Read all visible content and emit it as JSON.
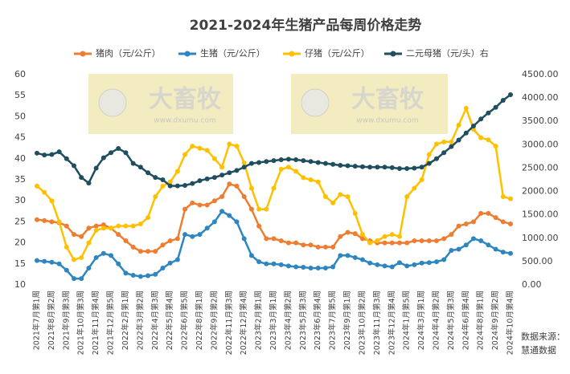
{
  "chart_data": {
    "type": "line",
    "title": "2021-2024年生猪产品每周价格走势",
    "watermark": "大畜牧",
    "watermark_url": "www.dxumu.com",
    "source_lines": [
      "数据来源：",
      "慧通数据"
    ],
    "categories": [
      "2021年7月第1周",
      null,
      "2021年8月第2周",
      null,
      "2021年9月第3周",
      null,
      "2021年10月第3周",
      null,
      "2021年11月第4周",
      null,
      "2021年12月第5周",
      null,
      "2022年2月第1周",
      null,
      "2022年3月第2周",
      null,
      "2022年4月第3周",
      null,
      "2022年5月第4周",
      null,
      "2022年6月第5周",
      null,
      "2022年8月第1周",
      null,
      "2022年9月第2周",
      null,
      "2022年11月第3周",
      null,
      "2022年12月第4周",
      null,
      "2023年2月第1周",
      null,
      "2023年3月第1周",
      null,
      "2023年4月第2周",
      null,
      "2023年5月第3周",
      null,
      "2023年6月第4周",
      null,
      "2023年7月第5周",
      null,
      "2023年9月第1周",
      null,
      "2023年10月第2周",
      null,
      "2023年11月第3周",
      null,
      "2023年12月第4周",
      null,
      "2024年1月第5周",
      null,
      "2024年3月第1周",
      null,
      "2024年4月第2周",
      null,
      "2024年5月第3周",
      null,
      "2024年6月第4周",
      null,
      "2024年8月第1周",
      null,
      "2024年9月第2周",
      null,
      "2024年10月第4周"
    ],
    "series": [
      {
        "name": "猪肉（元/公斤）",
        "color": "#ed7d31",
        "values": [
          25.5,
          25.3,
          25,
          24.8,
          24,
          22,
          21.5,
          23.5,
          24,
          24.3,
          23.5,
          22,
          20.5,
          19,
          18,
          18,
          18,
          19.5,
          20.5,
          21,
          28,
          29.5,
          29,
          29,
          30,
          31,
          34,
          33.5,
          31,
          28,
          24,
          21,
          21,
          20.5,
          20,
          20,
          19.5,
          19.5,
          19,
          19,
          19,
          21.5,
          22.5,
          22.2,
          21,
          20.5,
          20,
          20,
          20,
          20,
          20,
          20.5,
          20.5,
          20.5,
          20.5,
          21,
          22,
          24,
          24.5,
          25,
          27,
          27,
          26,
          25,
          24.5
        ]
      },
      {
        "name": "生猪（元/公斤）",
        "color": "#2e86c1",
        "values": [
          15.8,
          15.6,
          15.4,
          15,
          13.5,
          11.5,
          11.5,
          14,
          16.5,
          17.5,
          17,
          15,
          12.8,
          12.3,
          12,
          12.2,
          12.5,
          14,
          15.2,
          16,
          22,
          21.5,
          22,
          23.5,
          25,
          27.5,
          26.5,
          25,
          21,
          17,
          15.5,
          15,
          15,
          14.8,
          14.5,
          14.3,
          14.2,
          14,
          14,
          14,
          14.3,
          17,
          17,
          16.5,
          16,
          15.2,
          14.8,
          14.5,
          14.3,
          15.3,
          14.5,
          14.8,
          15.2,
          15.3,
          15.5,
          16,
          18.2,
          18.5,
          19.5,
          21,
          20.5,
          19.5,
          18.5,
          17.8,
          17.5
        ]
      },
      {
        "name": "仔猪（元/公斤）",
        "color": "#ffc000",
        "values": [
          33.5,
          32,
          30,
          25,
          19,
          16,
          16.5,
          20,
          23,
          23.5,
          23.5,
          24,
          24,
          24,
          24.5,
          26,
          31,
          33.5,
          34.5,
          37,
          41,
          43,
          42.5,
          42,
          40,
          38,
          43.5,
          43,
          39,
          33,
          28,
          28,
          33,
          37.5,
          38,
          37,
          35.5,
          35,
          34.5,
          31,
          29.5,
          31.5,
          31,
          27,
          22,
          20,
          20.5,
          21.5,
          22,
          21.5,
          31,
          33,
          35,
          41,
          43.5,
          44,
          44,
          48,
          52,
          47,
          45,
          44.5,
          43,
          31,
          30.5
        ]
      },
      {
        "name": "二元母猪（元/头）右",
        "color": "#1f4e5f",
        "axis": "y2",
        "values": [
          2820,
          2780,
          2790,
          2850,
          2700,
          2550,
          2300,
          2180,
          2500,
          2720,
          2830,
          2920,
          2830,
          2600,
          2520,
          2400,
          2300,
          2250,
          2120,
          2120,
          2130,
          2170,
          2230,
          2270,
          2300,
          2350,
          2400,
          2450,
          2520,
          2600,
          2620,
          2640,
          2660,
          2680,
          2690,
          2680,
          2660,
          2640,
          2620,
          2600,
          2580,
          2560,
          2550,
          2540,
          2530,
          2520,
          2520,
          2520,
          2510,
          2490,
          2490,
          2500,
          2520,
          2600,
          2700,
          2830,
          2960,
          3100,
          3250,
          3400,
          3550,
          3680,
          3800,
          3950,
          4070
        ]
      }
    ],
    "ylim": [
      10,
      60
    ],
    "yticks": [
      10,
      15,
      20,
      25,
      30,
      35,
      40,
      45,
      50,
      55,
      60
    ],
    "y2lim": [
      0,
      4500
    ],
    "y2ticks": [
      {
        "value": 0,
        "label": "0.00"
      },
      {
        "value": 500,
        "label": "500.00"
      },
      {
        "value": 1000,
        "label": "1000.00"
      },
      {
        "value": 1500,
        "label": "1500.00"
      },
      {
        "value": 2000,
        "label": "2000.00"
      },
      {
        "value": 2500,
        "label": "2500.00"
      },
      {
        "value": 3000,
        "label": "3000.00"
      },
      {
        "value": 3500,
        "label": "3500.00"
      },
      {
        "value": 4000,
        "label": "4000.00"
      },
      {
        "value": 4500,
        "label": "4500.00"
      }
    ],
    "grid": false
  }
}
